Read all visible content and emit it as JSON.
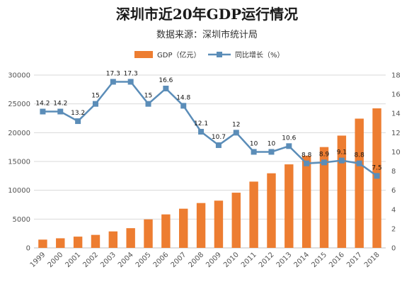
{
  "chart_data": {
    "type": "bar",
    "title": "深圳市近20年GDP运行情况",
    "subtitle": "数据来源：深圳市统计局",
    "categories": [
      "1999",
      "2000",
      "2001",
      "2002",
      "2003",
      "2004",
      "2005",
      "2006",
      "2007",
      "2008",
      "2009",
      "2010",
      "2011",
      "2012",
      "2013",
      "2014",
      "2015",
      "2016",
      "2017",
      "2018"
    ],
    "series": [
      {
        "name": "GDP（亿元）",
        "type": "bar",
        "axis": "left",
        "color": "#ED7D31",
        "values": [
          1436,
          1666,
          1955,
          2257,
          2860,
          3422,
          4951,
          5814,
          6802,
          7787,
          8201,
          9582,
          11506,
          12950,
          14500,
          16002,
          17503,
          19493,
          22438,
          24222
        ]
      },
      {
        "name": "同比增长（%）",
        "type": "line",
        "axis": "right",
        "color": "#5B8DB8",
        "values": [
          14.2,
          14.2,
          13.2,
          15,
          17.3,
          17.3,
          15,
          16.6,
          14.8,
          12.1,
          10.7,
          12,
          10,
          10,
          10.6,
          8.8,
          8.9,
          9.1,
          8.8,
          7.5
        ],
        "labels": [
          "14.2",
          "14.2",
          "13.2",
          "15",
          "17.3",
          "17.3",
          "15",
          "16.6",
          "14.8",
          "12.1",
          "10.7",
          "12",
          "10",
          "10",
          "10.6",
          "8.8",
          "8.9",
          "9.1",
          "8.8",
          "7.5"
        ]
      }
    ],
    "y_left": {
      "min": 0,
      "max": 30000,
      "ticks": [
        "0",
        "5000",
        "10000",
        "15000",
        "20000",
        "25000",
        "30000"
      ]
    },
    "y_right": {
      "min": 0,
      "max": 18,
      "ticks": [
        "0",
        "2",
        "4",
        "6",
        "8",
        "10",
        "12",
        "14",
        "16",
        "18"
      ]
    },
    "legend_position": "top",
    "grid": true
  }
}
